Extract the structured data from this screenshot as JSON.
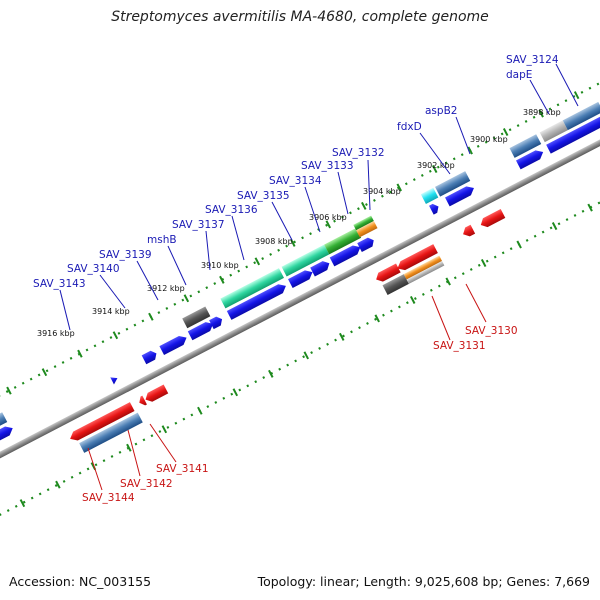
{
  "title": "Streptomyces avermitilis MA-4680, complete genome",
  "footer": {
    "accession": "Accession: NC_003155",
    "summary": "Topology: linear; Length: 9,025,608 bp; Genes: 7,669"
  },
  "colors": {
    "forward_label": "#1a1ab4",
    "reverse_label": "#c81414",
    "cds_blue": "#1414e6",
    "cds_red": "#e61414",
    "tick_green": "#1e8a1e",
    "backbone": "#8c8c8c"
  },
  "kbp_labels": [
    "3898 kbp",
    "3900 kbp",
    "3902 kbp",
    "3904 kbp",
    "3906 kbp",
    "3908 kbp",
    "3910 kbp",
    "3912 kbp",
    "3914 kbp",
    "3916 kbp"
  ],
  "forward_labels": [
    "SAV_3124",
    "dapE",
    "aspB2",
    "fdxD",
    "SAV_3132",
    "SAV_3133",
    "SAV_3134",
    "SAV_3135",
    "SAV_3136",
    "SAV_3137",
    "mshB",
    "SAV_3139",
    "SAV_3140",
    "SAV_3143"
  ],
  "reverse_labels": [
    "SAV_3130",
    "SAV_3131",
    "SAV_3141",
    "SAV_3142",
    "SAV_3144"
  ]
}
